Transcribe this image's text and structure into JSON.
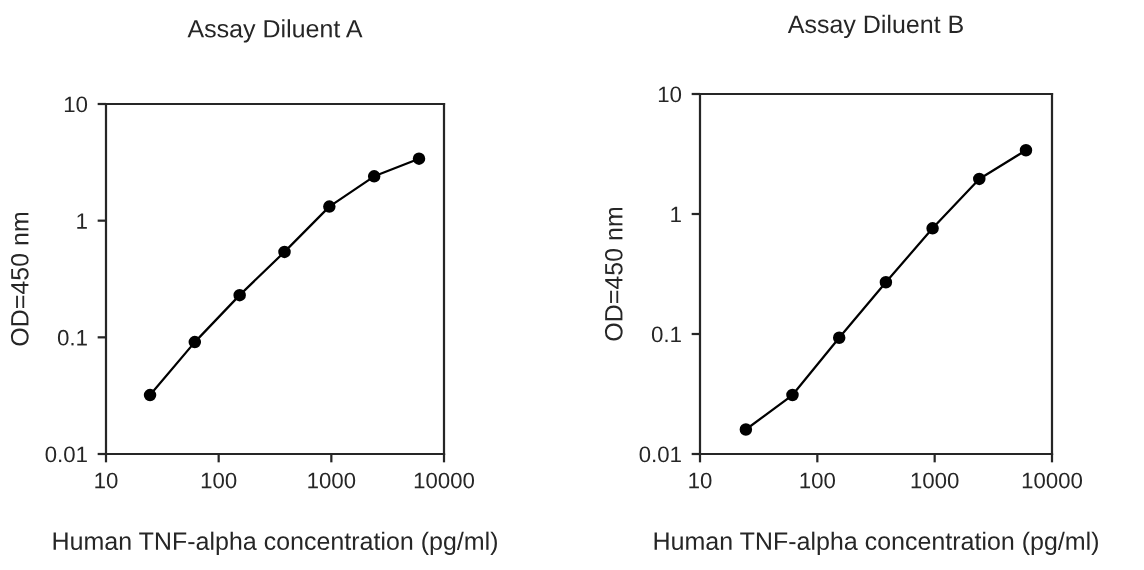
{
  "chart_data": [
    {
      "type": "line",
      "title": "Assay Diluent A",
      "xlabel": "Human TNF-alpha concentration (pg/ml)",
      "ylabel": "OD=450 nm",
      "log": "xy",
      "marker": "circle",
      "line_style": "solid",
      "grid": false,
      "legend": false,
      "xlim": [
        10,
        10000
      ],
      "ylim": [
        0.01,
        10
      ],
      "xticks": [
        10,
        100,
        1000,
        10000
      ],
      "yticks": [
        0.01,
        0.1,
        1,
        10
      ],
      "series": [
        {
          "color": "#000000",
          "x": [
            24.6,
            61.4,
            153.6,
            384,
            960,
            2400,
            6000
          ],
          "values": [
            0.032,
            0.091,
            0.23,
            0.54,
            1.32,
            2.4,
            3.4
          ]
        }
      ]
    },
    {
      "type": "line",
      "title": "Assay Diluent B",
      "xlabel": "Human TNF-alpha concentration (pg/ml)",
      "ylabel": "OD=450 nm",
      "log": "xy",
      "marker": "circle",
      "line_style": "solid",
      "grid": false,
      "legend": false,
      "xlim": [
        10,
        10000
      ],
      "ylim": [
        0.01,
        10
      ],
      "xticks": [
        10,
        100,
        1000,
        10000
      ],
      "yticks": [
        0.01,
        0.1,
        1,
        10
      ],
      "series": [
        {
          "color": "#000000",
          "x": [
            24.6,
            61.4,
            153.6,
            384,
            960,
            2400,
            6000
          ],
          "values": [
            0.016,
            0.031,
            0.093,
            0.27,
            0.76,
            1.96,
            3.4
          ]
        }
      ]
    }
  ]
}
